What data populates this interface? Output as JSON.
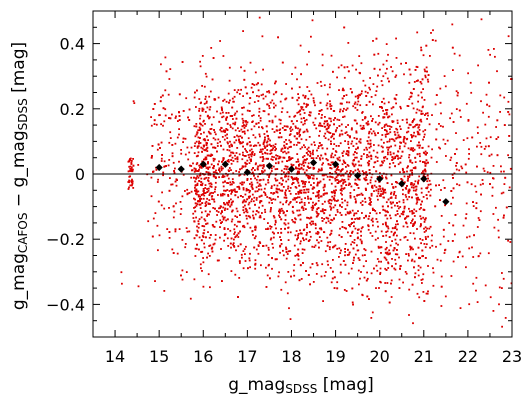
{
  "chart_data": {
    "type": "scatter",
    "xlabel_main": "g_mag",
    "xlabel_sub": "SDSS",
    "xlabel_unit": " [mag]",
    "ylabel_main_1": "g_mag",
    "ylabel_sub_1": "CAFOS",
    "ylabel_op": " − ",
    "ylabel_main_2": "g_mag",
    "ylabel_sub_2": "SDSS",
    "ylabel_unit": " [mag]",
    "xlim": [
      13.5,
      23
    ],
    "ylim": [
      -0.5,
      0.5
    ],
    "xticks": [
      14,
      15,
      16,
      17,
      18,
      19,
      20,
      21,
      22,
      23
    ],
    "xtick_labels": [
      "14",
      "15",
      "16",
      "17",
      "18",
      "19",
      "20",
      "21",
      "22",
      "23"
    ],
    "yticks": [
      -0.4,
      -0.2,
      0,
      0.2,
      0.4
    ],
    "ytick_labels": [
      "−0.4",
      "−0.2",
      "0",
      "0.2",
      "0.4"
    ],
    "grid": false,
    "reference_line_y": 0,
    "series": [
      {
        "kind": "individual measurements",
        "color": "#dd0000",
        "note": "several thousand points, roughly |dy| <= 0.45, densest for 16 < x < 21"
      },
      {
        "kind": "binned means",
        "color": "#000000",
        "x": [
          15.0,
          15.5,
          16.0,
          16.5,
          17.0,
          17.5,
          18.0,
          18.5,
          19.0,
          19.5,
          20.0,
          20.5,
          21.0,
          21.5
        ],
        "y": [
          0.02,
          0.015,
          0.03,
          0.03,
          0.005,
          0.025,
          0.015,
          0.035,
          0.03,
          -0.005,
          -0.015,
          -0.03,
          -0.015,
          -0.085
        ]
      }
    ]
  }
}
